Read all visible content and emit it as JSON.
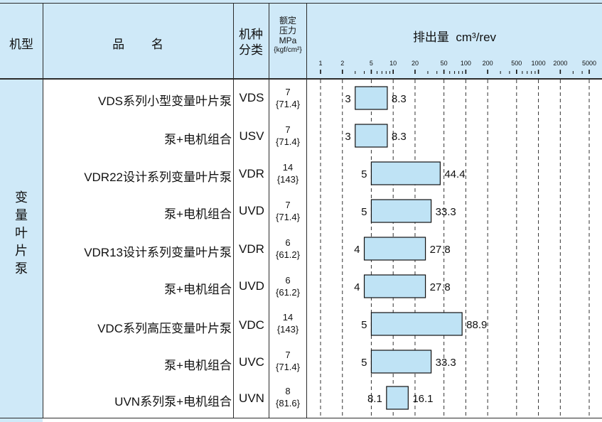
{
  "header": {
    "model_label": "机型",
    "name_label": "品        名",
    "type_label_1": "机种",
    "type_label_2": "分类",
    "pressure_label_1": "额定",
    "pressure_label_2": "压力",
    "pressure_label_3": "MPa",
    "pressure_label_4": "{kgf/cm²}",
    "chart_title": "排出量  cm³/rev"
  },
  "category": {
    "chars": [
      "变",
      "量",
      "叶",
      "片",
      "泵"
    ]
  },
  "rows": [
    {
      "name": "VDS系列小型变量叶片泵",
      "code": "VDS",
      "mpa": "7",
      "kgf": "{71.4}"
    },
    {
      "name": "泵+电机组合",
      "code": "USV",
      "mpa": "7",
      "kgf": "{71.4}"
    },
    {
      "name": "VDR22设计系列变量叶片泵",
      "code": "VDR",
      "mpa": "14",
      "kgf": "{143}"
    },
    {
      "name": "泵+电机组合",
      "code": "UVD",
      "mpa": "7",
      "kgf": "{71.4}"
    },
    {
      "name": "VDR13设计系列变量叶片泵",
      "code": "VDR",
      "mpa": "6",
      "kgf": "{61.2}"
    },
    {
      "name": "泵+电机组合",
      "code": "UVD",
      "mpa": "6",
      "kgf": "{61.2}"
    },
    {
      "name": "VDC系列高压变量叶片泵",
      "code": "VDC",
      "mpa": "14",
      "kgf": "{143}"
    },
    {
      "name": "泵+电机组合",
      "code": "UVC",
      "mpa": "7",
      "kgf": "{71.4}"
    },
    {
      "name": "UVN系列泵+电机组合",
      "code": "UVN",
      "mpa": "8",
      "kgf": "{81.6}"
    }
  ],
  "chart_data": {
    "type": "bar",
    "orientation": "horizontal-range",
    "title": "排出量  cm³/rev",
    "x_scale": "log",
    "x_ticks": [
      "1",
      "2",
      "5",
      "10",
      "20",
      "50",
      "100",
      "200",
      "500",
      "1000",
      "2000",
      "5000"
    ],
    "xlim": [
      1,
      5000
    ],
    "categories": [
      "VDS",
      "USV",
      "VDR",
      "UVD",
      "VDR",
      "UVD",
      "VDC",
      "UVC",
      "UVN"
    ],
    "min_labels": [
      "3",
      "3",
      "5",
      "5",
      "4",
      "4",
      "5",
      "5",
      "8.1"
    ],
    "max_labels": [
      "8.3",
      "8.3",
      "44.4",
      "33.3",
      "27.8",
      "27.8",
      "88.9",
      "33.3",
      "16.1"
    ],
    "ranges": [
      [
        3,
        8.3
      ],
      [
        3,
        8.3
      ],
      [
        5,
        44.4
      ],
      [
        5,
        33.3
      ],
      [
        4,
        27.8
      ],
      [
        4,
        27.8
      ],
      [
        5,
        88.9
      ],
      [
        5,
        33.3
      ],
      [
        8.1,
        16.1
      ]
    ],
    "bar_color": "#bfe3f5"
  },
  "colors": {
    "header_bg": "#cfe9f8",
    "bar_fill": "#bfe3f5",
    "border": "#2b2b2b"
  }
}
